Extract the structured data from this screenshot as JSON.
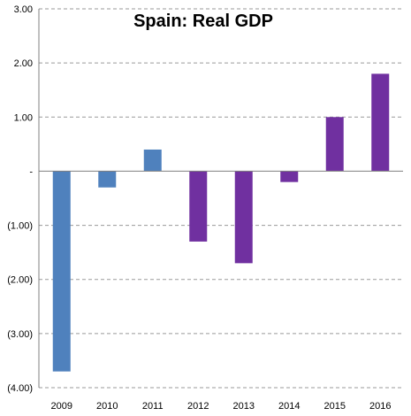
{
  "chart_data": {
    "type": "bar",
    "title": "Spain: Real GDP",
    "xlabel": "",
    "ylabel": "",
    "categories": [
      "2009",
      "2010",
      "2011",
      "2012",
      "2013",
      "2014",
      "2015",
      "2016"
    ],
    "values": [
      -3.7,
      -0.3,
      0.4,
      -1.3,
      -1.7,
      -0.2,
      1.0,
      1.8
    ],
    "bar_colors": [
      "#4f81bd",
      "#4f81bd",
      "#4f81bd",
      "#7030a0",
      "#7030a0",
      "#7030a0",
      "#7030a0",
      "#7030a0"
    ],
    "ylim": [
      -4,
      3
    ],
    "ytick_values": [
      3,
      2,
      1,
      0,
      -1,
      -2,
      -3,
      -4
    ],
    "ytick_labels": [
      "3.00",
      "2.00",
      "1.00",
      "-",
      "(1.00)",
      "(2.00)",
      "(3.00)",
      "(4.00)"
    ],
    "grid": true,
    "legend": "none"
  }
}
